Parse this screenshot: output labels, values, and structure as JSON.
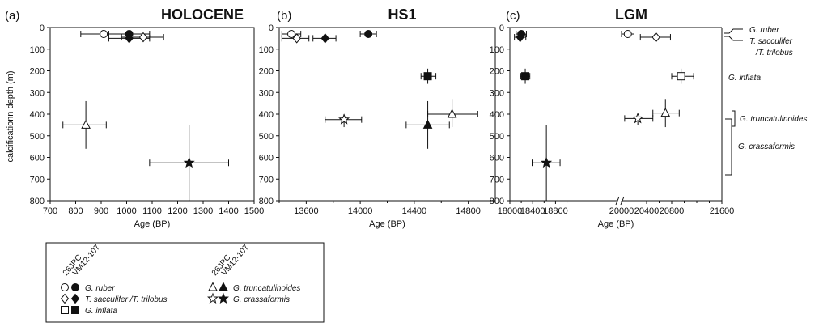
{
  "figure": {
    "ylabel": "calcificationn depth (m)",
    "xlabel": "Age (BP)",
    "y_ticks": [
      "0",
      "100",
      "200",
      "300",
      "400",
      "500",
      "600",
      "700",
      "800"
    ]
  },
  "species_labels": [
    {
      "text": "G. ruber"
    },
    {
      "text": "T. sacculifer"
    },
    {
      "text": "/T. trilobus"
    },
    {
      "text": "G. inflata"
    },
    {
      "text": "G. truncatulinoides"
    },
    {
      "text": "G. crassaformis"
    }
  ],
  "legend": {
    "core_a": "26JPC",
    "core_b": "VM12-107",
    "items": [
      {
        "marker": "circle",
        "label": "G. ruber"
      },
      {
        "marker": "diamond",
        "label": "T. sacculifer /T. trilobus"
      },
      {
        "marker": "square",
        "label": "G. inflata"
      },
      {
        "marker": "triangle",
        "label": "G. truncatulinoides"
      },
      {
        "marker": "star",
        "label": "G. crassaformis"
      }
    ]
  },
  "chart_data": [
    {
      "type": "scatter",
      "panel_label": "(a)",
      "title": "HOLOCENE",
      "xlabel": "Age (BP)",
      "ylabel": "calcificationn depth (m)",
      "xlim": [
        700,
        1500
      ],
      "ylim": [
        800,
        0
      ],
      "x_ticks": [
        "700",
        "800",
        "900",
        "1000",
        "1100",
        "1200",
        "1300",
        "1400",
        "1500"
      ],
      "points": [
        {
          "species": "G. ruber",
          "core": "26JPC",
          "marker": "circle",
          "filled": false,
          "x": 910,
          "y": 30,
          "x_err": [
            820,
            1010
          ]
        },
        {
          "species": "G. ruber",
          "core": "VM12-107",
          "marker": "circle",
          "filled": true,
          "x": 1010,
          "y": 30,
          "x_err": [
            930,
            1090
          ]
        },
        {
          "species": "T. sacculifer /T. trilobus",
          "core": "VM12-107",
          "marker": "diamond",
          "filled": true,
          "x": 1010,
          "y": 50,
          "x_err": [
            930,
            1090
          ]
        },
        {
          "species": "T. sacculifer /T. trilobus",
          "core": "26JPC",
          "marker": "diamond",
          "filled": false,
          "x": 1065,
          "y": 45,
          "x_err": [
            980,
            1145
          ]
        },
        {
          "species": "G. truncatulinoides",
          "core": "26JPC",
          "marker": "triangle",
          "filled": false,
          "x": 840,
          "y": 450,
          "x_err": [
            750,
            920
          ],
          "y_err": [
            340,
            560
          ]
        },
        {
          "species": "G. crassaformis",
          "core": "VM12-107",
          "marker": "star",
          "filled": true,
          "x": 1245,
          "y": 625,
          "x_err": [
            1090,
            1400
          ],
          "y_err": [
            450,
            800
          ]
        }
      ]
    },
    {
      "type": "scatter",
      "panel_label": "(b)",
      "title": "HS1",
      "xlabel": "Age (BP)",
      "xlim": [
        13400,
        15000
      ],
      "ylim": [
        800,
        0
      ],
      "x_ticks": [
        "13600",
        "14000",
        "14400",
        "14800"
      ],
      "points": [
        {
          "species": "G. ruber",
          "core": "26JPC",
          "marker": "circle",
          "filled": false,
          "x": 13490,
          "y": 30,
          "x_err": [
            13420,
            13560
          ]
        },
        {
          "species": "T. sacculifer /T. trilobus",
          "core": "26JPC",
          "marker": "diamond",
          "filled": false,
          "x": 13530,
          "y": 50,
          "x_err": [
            13420,
            13620
          ]
        },
        {
          "species": "T. sacculifer /T. trilobus",
          "core": "VM12-107",
          "marker": "diamond",
          "filled": true,
          "x": 13740,
          "y": 50,
          "x_err": [
            13650,
            13820
          ]
        },
        {
          "species": "G. ruber",
          "core": "VM12-107",
          "marker": "circle",
          "filled": true,
          "x": 14060,
          "y": 30,
          "x_err": [
            14000,
            14120
          ]
        },
        {
          "species": "G. inflata",
          "core": "VM12-107",
          "marker": "square",
          "filled": true,
          "x": 14500,
          "y": 225,
          "x_err": [
            14450,
            14560
          ],
          "y_err": [
            190,
            260
          ]
        },
        {
          "species": "G. crassaformis",
          "core": "26JPC",
          "marker": "star",
          "filled": false,
          "x": 13880,
          "y": 425,
          "x_err": [
            13740,
            14010
          ],
          "y_err": [
            400,
            460
          ]
        },
        {
          "species": "G. truncatulinoides",
          "core": "26JPC",
          "marker": "triangle",
          "filled": false,
          "x": 14680,
          "y": 400,
          "x_err": [
            14500,
            14870
          ],
          "y_err": [
            330,
            460
          ]
        },
        {
          "species": "G. truncatulinoides",
          "core": "VM12-107",
          "marker": "triangle",
          "filled": true,
          "x": 14500,
          "y": 450,
          "x_err": [
            14340,
            14660
          ],
          "y_err": [
            340,
            560
          ]
        }
      ]
    },
    {
      "type": "scatter",
      "panel_label": "(c)",
      "title": "LGM",
      "xlabel": "Age (BP)",
      "xlim": [
        18000,
        21600
      ],
      "ylim": [
        800,
        0
      ],
      "x_ticks": [
        "18000",
        "18400",
        "18800",
        "20000",
        "20400",
        "20800",
        "21600"
      ],
      "axis_break": true,
      "points": [
        {
          "species": "G. ruber",
          "core": "VM12-107",
          "marker": "circle",
          "filled": true,
          "x": 18200,
          "y": 30,
          "x_err": [
            18110,
            18290
          ]
        },
        {
          "species": "T. sacculifer /T. trilobus",
          "core": "VM12-107",
          "marker": "diamond",
          "filled": true,
          "x": 18180,
          "y": 45,
          "x_err": [
            18080,
            18280
          ]
        },
        {
          "species": "G. inflata",
          "core": "VM12-107",
          "marker": "square",
          "filled": true,
          "x": 18270,
          "y": 225,
          "x_err": [
            18190,
            18350
          ],
          "y_err": [
            190,
            260
          ]
        },
        {
          "species": "G. crassaformis",
          "core": "VM12-107",
          "marker": "star",
          "filled": true,
          "x": 18640,
          "y": 625,
          "x_err": [
            18390,
            18880
          ],
          "y_err": [
            450,
            800
          ]
        },
        {
          "species": "G. ruber",
          "core": "26JPC",
          "marker": "circle",
          "filled": false,
          "x": 20100,
          "y": 30,
          "x_err": [
            20000,
            20200
          ]
        },
        {
          "species": "T. sacculifer /T. trilobus",
          "core": "26JPC",
          "marker": "diamond",
          "filled": false,
          "x": 20550,
          "y": 45,
          "x_err": [
            20300,
            20780
          ]
        },
        {
          "species": "G. inflata",
          "core": "26JPC",
          "marker": "square",
          "filled": false,
          "x": 20950,
          "y": 225,
          "x_err": [
            20800,
            21150
          ],
          "y_err": [
            190,
            260
          ]
        },
        {
          "species": "G. truncatulinoides",
          "core": "26JPC",
          "marker": "triangle",
          "filled": false,
          "x": 20700,
          "y": 395,
          "x_err": [
            20500,
            20920
          ],
          "y_err": [
            330,
            460
          ]
        },
        {
          "species": "G. crassaformis",
          "core": "26JPC",
          "marker": "star",
          "filled": false,
          "x": 20260,
          "y": 420,
          "x_err": [
            20050,
            20500
          ],
          "y_err": [
            400,
            450
          ]
        }
      ]
    }
  ]
}
